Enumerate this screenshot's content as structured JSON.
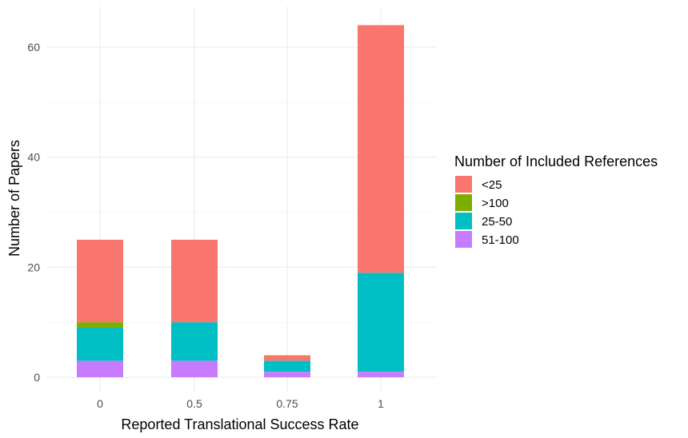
{
  "chart_data": {
    "type": "bar",
    "stacked": true,
    "categories": [
      "0",
      "0.5",
      "0.75",
      "1"
    ],
    "series": [
      {
        "name": "<25",
        "color": "#F8766D",
        "values": [
          15,
          15,
          1,
          45
        ]
      },
      {
        "name": ">100",
        "color": "#7CAE00",
        "values": [
          1,
          0,
          0,
          0
        ]
      },
      {
        "name": "25-50",
        "color": "#00BFC4",
        "values": [
          6,
          7,
          2,
          18
        ]
      },
      {
        "name": "51-100",
        "color": "#C77CFF",
        "values": [
          3,
          3,
          1,
          1
        ]
      }
    ],
    "stack_order_bottom_to_top": [
      "51-100",
      "25-50",
      ">100",
      "<25"
    ],
    "xlabel": "Reported Translational Success Rate",
    "ylabel": "Number of Papers",
    "ylim": [
      0,
      66
    ],
    "yticks": [
      0,
      20,
      40,
      60
    ],
    "grid": true,
    "legend": {
      "title": "Number of Included References",
      "position": "right"
    }
  }
}
